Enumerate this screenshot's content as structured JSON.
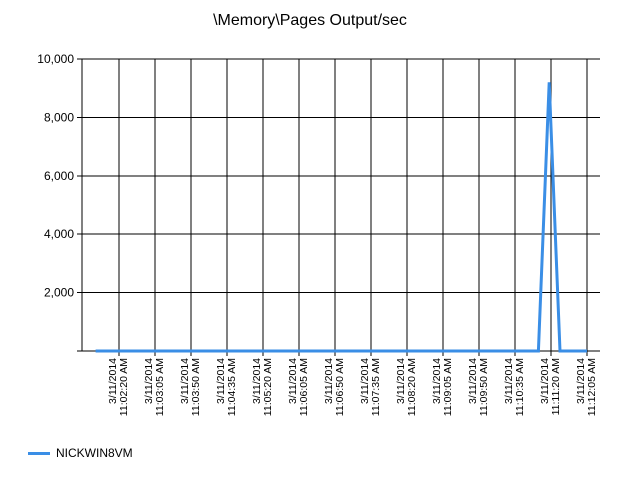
{
  "chart_data": {
    "type": "line",
    "title": "\\Memory\\Pages Output/sec",
    "xlabel": "",
    "ylabel": "",
    "ylim": [
      0,
      10000
    ],
    "yticks": [
      0,
      2000,
      4000,
      6000,
      8000,
      10000
    ],
    "ytick_labels": [
      "",
      "2,000",
      "4,000",
      "6,000",
      "8,000",
      "10,000"
    ],
    "xtick_labels": [
      [
        "3/11/2014",
        "11:02:20 AM"
      ],
      [
        "3/11/2014",
        "11:03:05 AM"
      ],
      [
        "3/11/2014",
        "11:03:50 AM"
      ],
      [
        "3/11/2014",
        "11:04:35 AM"
      ],
      [
        "3/11/2014",
        "11:05:20 AM"
      ],
      [
        "3/11/2014",
        "11:06:05 AM"
      ],
      [
        "3/11/2014",
        "11:06:50 AM"
      ],
      [
        "3/11/2014",
        "11:07:35 AM"
      ],
      [
        "3/11/2014",
        "11:08:20 AM"
      ],
      [
        "3/11/2014",
        "11:09:05 AM"
      ],
      [
        "3/11/2014",
        "11:09:50 AM"
      ],
      [
        "3/11/2014",
        "11:10:35 AM"
      ],
      [
        "3/11/2014",
        "11:11:20 AM"
      ],
      [
        "3/11/2014",
        "11:12:05 AM"
      ]
    ],
    "x_unit_seconds": 45,
    "x_start_offset": -0.65,
    "x_end_offset": 13.0,
    "grid": true,
    "legend_position": "bottom-left",
    "series": [
      {
        "name": "NICKWIN8VM",
        "color": "#3a8ee6",
        "x": [
          -0.65,
          11.35,
          11.65,
          11.95,
          12.25,
          13.0
        ],
        "values": [
          0,
          0,
          0,
          9200,
          0,
          0
        ]
      }
    ]
  }
}
